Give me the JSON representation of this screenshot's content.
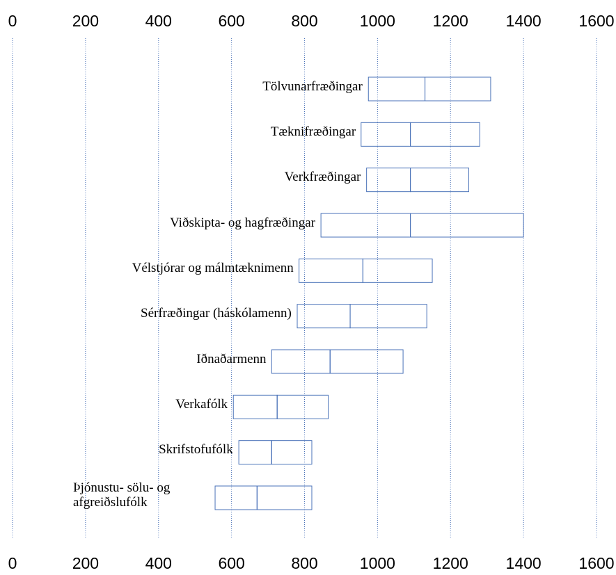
{
  "chart_data": {
    "type": "range_bar",
    "categories": [
      "Tölvunarfræðingar",
      "Tæknifræðingar",
      "Verkfræðingar",
      "Viðskipta- og hagfræðingar",
      "Vélstjórar og málmtæknimenn",
      "Sérfræðingar (háskólamenn)",
      "Iðnaðarmenn",
      "Verkafólk",
      "Skrifstofufólk",
      "Þjónustu- sölu- og afgreiðslufólk"
    ],
    "series": [
      {
        "name": "low",
        "values": [
          975,
          955,
          970,
          845,
          785,
          780,
          710,
          605,
          620,
          555
        ]
      },
      {
        "name": "median",
        "values": [
          1130,
          1090,
          1090,
          1090,
          960,
          925,
          870,
          725,
          710,
          670
        ]
      },
      {
        "name": "high",
        "values": [
          1310,
          1280,
          1250,
          1400,
          1150,
          1135,
          1070,
          865,
          820,
          820
        ]
      }
    ],
    "color": "#4a72b8",
    "xlim": [
      0,
      1600
    ],
    "xticks": [
      0,
      200,
      400,
      600,
      800,
      1000,
      1200,
      1400,
      1600
    ],
    "grid": true
  }
}
